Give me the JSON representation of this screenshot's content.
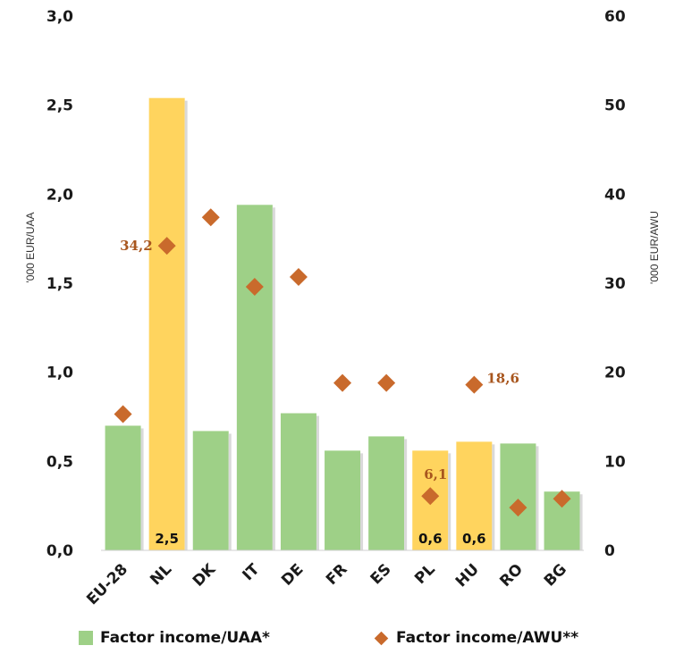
{
  "chart_data": {
    "type": "bar",
    "categories": [
      "EU-28",
      "NL",
      "DK",
      "IT",
      "DE",
      "FR",
      "ES",
      "PL",
      "HU",
      "RO",
      "BG"
    ],
    "series": [
      {
        "name": "Factor income/UAA*",
        "type": "bar",
        "axis": "left",
        "values": [
          0.7,
          2.54,
          0.67,
          1.94,
          0.77,
          0.56,
          0.64,
          0.56,
          0.61,
          0.6,
          0.33
        ],
        "highlight": [
          false,
          true,
          false,
          false,
          false,
          false,
          false,
          true,
          true,
          false,
          false
        ]
      },
      {
        "name": "Factor income/AWU**",
        "type": "scatter",
        "axis": "right",
        "values": [
          15.3,
          34.2,
          37.4,
          29.6,
          30.7,
          18.8,
          18.8,
          6.1,
          18.6,
          4.8,
          5.8
        ]
      }
    ],
    "bar_labels": [
      {
        "category": "NL",
        "text": "2,5"
      },
      {
        "category": "PL",
        "text": "0,6"
      },
      {
        "category": "HU",
        "text": "0,6"
      }
    ],
    "point_labels": [
      {
        "category": "NL",
        "text": "34,2",
        "side": "left"
      },
      {
        "category": "PL",
        "text": "6,1",
        "side": "above"
      },
      {
        "category": "HU",
        "text": "18,6",
        "side": "right"
      }
    ],
    "left_axis": {
      "label": "'000 EUR/UAA",
      "ylim": [
        0,
        3
      ],
      "ticks": [
        0,
        0.5,
        1,
        1.5,
        2,
        2.5,
        3
      ],
      "tick_labels": [
        "0,0",
        "0,5",
        "1,0",
        "1,5",
        "2,0",
        "2,5",
        "3,0"
      ]
    },
    "right_axis": {
      "label": "'000 EUR/AWU",
      "ylim": [
        0,
        60
      ],
      "ticks": [
        0,
        10,
        20,
        30,
        40,
        50,
        60
      ],
      "tick_labels": [
        "0",
        "10",
        "20",
        "30",
        "40",
        "50",
        "60"
      ]
    },
    "grid": false,
    "legend_position": "bottom",
    "colors": {
      "bar": "#9ed087",
      "bar_highlight": "#ffd45e",
      "point": "#c96a2c",
      "point_label": "#a8561e"
    }
  }
}
